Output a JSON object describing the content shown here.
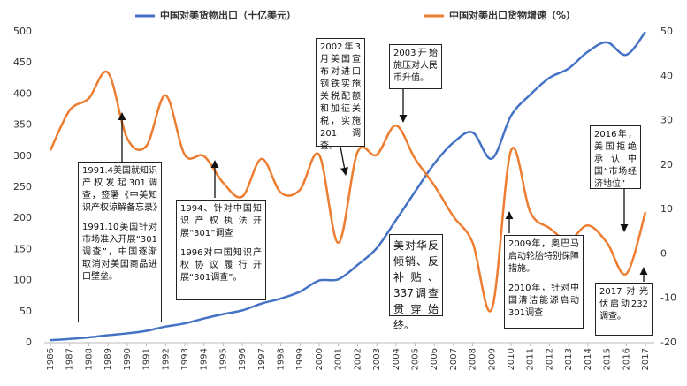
{
  "chart_data": {
    "type": "line",
    "categories": [
      "1986",
      "1987",
      "1988",
      "1989",
      "1990",
      "1991",
      "1992",
      "1993",
      "1994",
      "1995",
      "1996",
      "1997",
      "1998",
      "1999",
      "2000",
      "2001",
      "2002",
      "2003",
      "2004",
      "2005",
      "2006",
      "2007",
      "2008",
      "2009",
      "2010",
      "2011",
      "2012",
      "2013",
      "2014",
      "2015",
      "2016",
      "2017"
    ],
    "series": [
      {
        "name": "中国对美货物出口（十亿美元）",
        "color": "#4472c4",
        "axis": "y",
        "values": [
          4,
          6,
          8.5,
          12,
          15,
          19,
          26,
          31,
          39,
          46,
          52,
          63,
          71,
          82,
          100,
          102,
          125,
          152,
          197,
          243,
          288,
          322,
          338,
          296,
          365,
          399,
          426,
          441,
          468,
          483,
          463,
          500
        ]
      },
      {
        "name": "中国对美出口货物增速（%）",
        "color": "#ed7d31",
        "axis": "y2",
        "values": [
          23.3,
          32.3,
          35,
          40.8,
          26,
          24.3,
          35.7,
          22.3,
          22,
          16,
          12.9,
          21.4,
          13.8,
          14.4,
          22.3,
          2.5,
          22.9,
          22.3,
          28.9,
          21.4,
          15.4,
          8.4,
          2.5,
          -12.4,
          23.3,
          9.4,
          5.8,
          3.1,
          6.4,
          2.5,
          -4.5,
          9.4
        ]
      }
    ],
    "ylim": [
      0,
      500
    ],
    "yticks": [
      0,
      50,
      100,
      150,
      200,
      250,
      300,
      350,
      400,
      450,
      500
    ],
    "y2lim": [
      -20,
      50
    ],
    "y2ticks": [
      -20,
      -10,
      0,
      10,
      20,
      30,
      40,
      50
    ],
    "legend": "top",
    "annotations": [
      "1991.4美国就知识产权发起301调查，签署《中美知识产权谅解备忘录》",
      "1991.10美国针对市场准入开展“301调查”，中国逐渐取消对美国商品进口壁垒。",
      "1994、针对中国知识产权执法开展“301”调查",
      "1996对中国知识产权协议履行开展“301调查”。",
      "2002年3月美国宣布对进口钢铁实施关税配额和加征关税，实施201调查。",
      "2003开始施压对人民币升值。",
      "美对华反倾销、反补贴、337调查贯穿始终。",
      "2009年，奥巴马启动轮胎特别保障措施。",
      "2010年，针对中国清洁能源启动301调查",
      "2016年，美国拒绝承认中国“市场经济地位”",
      "2017对光伏启动232调查。"
    ]
  }
}
